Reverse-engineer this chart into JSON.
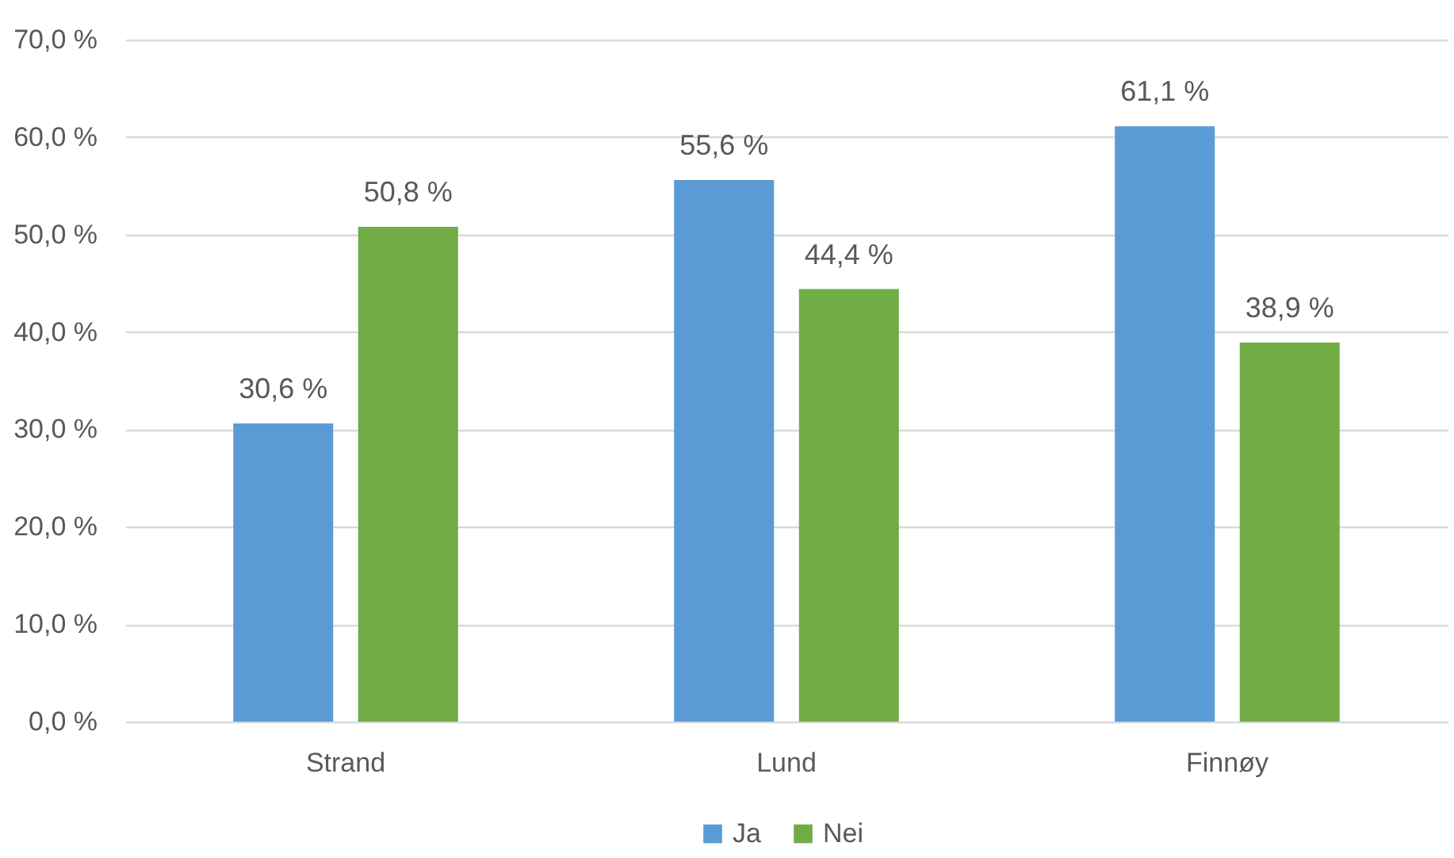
{
  "chart_data": {
    "type": "bar",
    "categories": [
      "Strand",
      "Lund",
      "Finnøy"
    ],
    "series": [
      {
        "name": "Ja",
        "color": "#5b9bd5",
        "values": [
          30.6,
          55.6,
          61.1
        ],
        "value_labels": [
          "30,6 %",
          "55,6 %",
          "61,1 %"
        ]
      },
      {
        "name": "Nei",
        "color": "#70ad47",
        "values": [
          50.8,
          44.4,
          38.9
        ],
        "value_labels": [
          "50,8 %",
          "44,4 %",
          "38,9 %"
        ]
      }
    ],
    "ylim": [
      0,
      70
    ],
    "yticks": [
      {
        "value": 0,
        "label": "0,0 %"
      },
      {
        "value": 10,
        "label": "10,0 %"
      },
      {
        "value": 20,
        "label": "20,0 %"
      },
      {
        "value": 30,
        "label": "30,0 %"
      },
      {
        "value": 40,
        "label": "40,0 %"
      },
      {
        "value": 50,
        "label": "50,0 %"
      },
      {
        "value": 60,
        "label": "60,0 %"
      },
      {
        "value": 70,
        "label": "70,0 %"
      }
    ],
    "grid": "y",
    "legend": "bottom"
  }
}
